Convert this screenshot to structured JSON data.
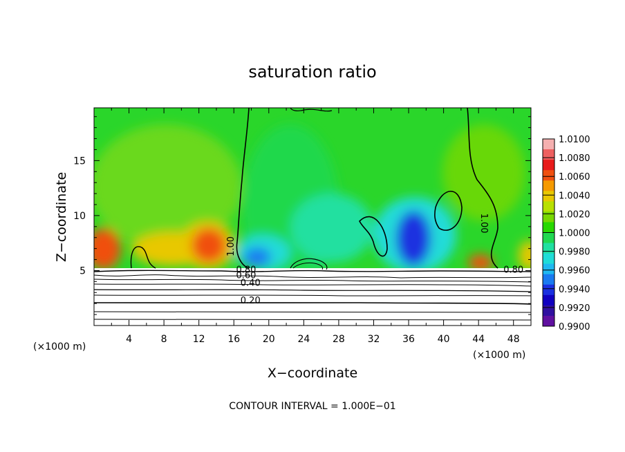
{
  "chart_data": {
    "type": "heatmap",
    "title": "saturation ratio",
    "xlabel": "X−coordinate",
    "ylabel": "Z−coordinate",
    "xunit_left": "(×1000 m)",
    "xunit_right": "(×1000 m)",
    "footer": "CONTOUR INTERVAL = 1.000E−01",
    "xlim": [
      0,
      50
    ],
    "ylim": [
      0,
      19.8
    ],
    "x_ticks": [
      4,
      8,
      12,
      16,
      20,
      24,
      28,
      32,
      36,
      40,
      44,
      48
    ],
    "x_tick_labels": [
      "4",
      "8",
      "12",
      "16",
      "20",
      "24",
      "28",
      "32",
      "36",
      "40",
      "44",
      "48"
    ],
    "y_ticks": [
      5,
      10,
      15
    ],
    "y_tick_labels": [
      "5",
      "10",
      "15"
    ],
    "colorbar": {
      "labels": [
        "1.0100",
        "1.0080",
        "1.0060",
        "1.0040",
        "1.0020",
        "1.0000",
        "0.9980",
        "0.9960",
        "0.9940",
        "0.9920",
        "0.9900"
      ],
      "colors": [
        "#f5b0b0",
        "#ee6060",
        "#e81a1a",
        "#f05010",
        "#f59a00",
        "#e8c800",
        "#b8e000",
        "#78d800",
        "#28d800",
        "#20d850",
        "#20e0a0",
        "#20dcd8",
        "#20b8f0",
        "#1a7af0",
        "#1a30e0",
        "#1000c0",
        "#3010a0",
        "#6010a0"
      ]
    },
    "contour_labels": [
      {
        "text": "1.00",
        "x": 16.0,
        "z": 7.2
      },
      {
        "text": "1.00",
        "x": 44.3,
        "z": 9.3
      },
      {
        "text": "0.80",
        "x": 17.4,
        "z": 4.8
      },
      {
        "text": "0.60",
        "x": 17.4,
        "z": 4.3
      },
      {
        "text": "0.40",
        "x": 17.9,
        "z": 3.6
      },
      {
        "text": "0.20",
        "x": 17.9,
        "z": 2.0
      },
      {
        "text": "0.80",
        "x": 48.0,
        "z": 4.8
      }
    ],
    "contour_levels_below_cloud": [
      0.2,
      0.4,
      0.6,
      0.8
    ]
  }
}
